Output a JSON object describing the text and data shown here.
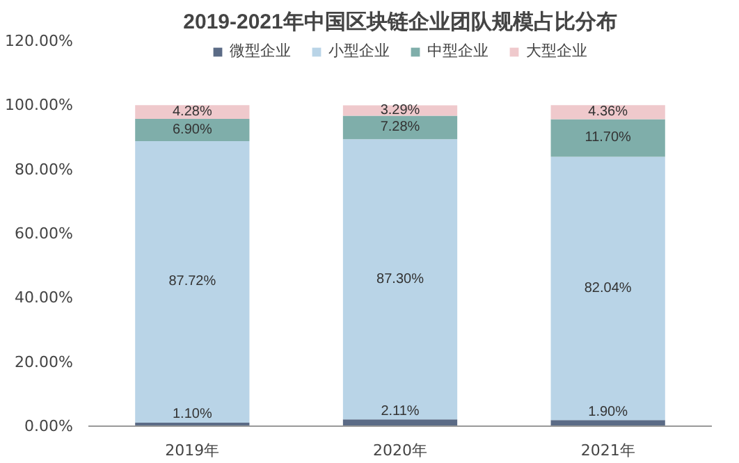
{
  "chart_data": {
    "type": "bar",
    "title": "2019-2021年中国区块链企业团队规模占比分布",
    "categories": [
      "2019年",
      "2020年",
      "2021年"
    ],
    "stacked": true,
    "legend": "top",
    "grid": false,
    "ylim": [
      0,
      120
    ],
    "yticks": [
      {
        "value": 0,
        "label": "0.00%"
      },
      {
        "value": 20,
        "label": "20.00%"
      },
      {
        "value": 40,
        "label": "40.00%"
      },
      {
        "value": 60,
        "label": "60.00%"
      },
      {
        "value": 80,
        "label": "80.00%"
      },
      {
        "value": 100,
        "label": "100.00%"
      },
      {
        "value": 120,
        "label": "120.00%"
      }
    ],
    "series": [
      {
        "name": "微型企业",
        "color": "#5b6b86",
        "values": [
          1.1,
          2.11,
          1.9
        ],
        "value_labels": [
          "1.10%",
          "2.11%",
          "1.90%"
        ]
      },
      {
        "name": "小型企业",
        "color": "#b9d4e7",
        "values": [
          87.72,
          87.3,
          82.04
        ],
        "value_labels": [
          "87.72%",
          "87.30%",
          "82.04%"
        ]
      },
      {
        "name": "中型企业",
        "color": "#7faeaa",
        "values": [
          6.9,
          7.28,
          11.7
        ],
        "value_labels": [
          "6.90%",
          "7.28%",
          "11.70%"
        ]
      },
      {
        "name": "大型企业",
        "color": "#efc9cc",
        "values": [
          4.28,
          3.29,
          4.36
        ],
        "value_labels": [
          "4.28%",
          "3.29%",
          "4.36%"
        ]
      }
    ]
  }
}
